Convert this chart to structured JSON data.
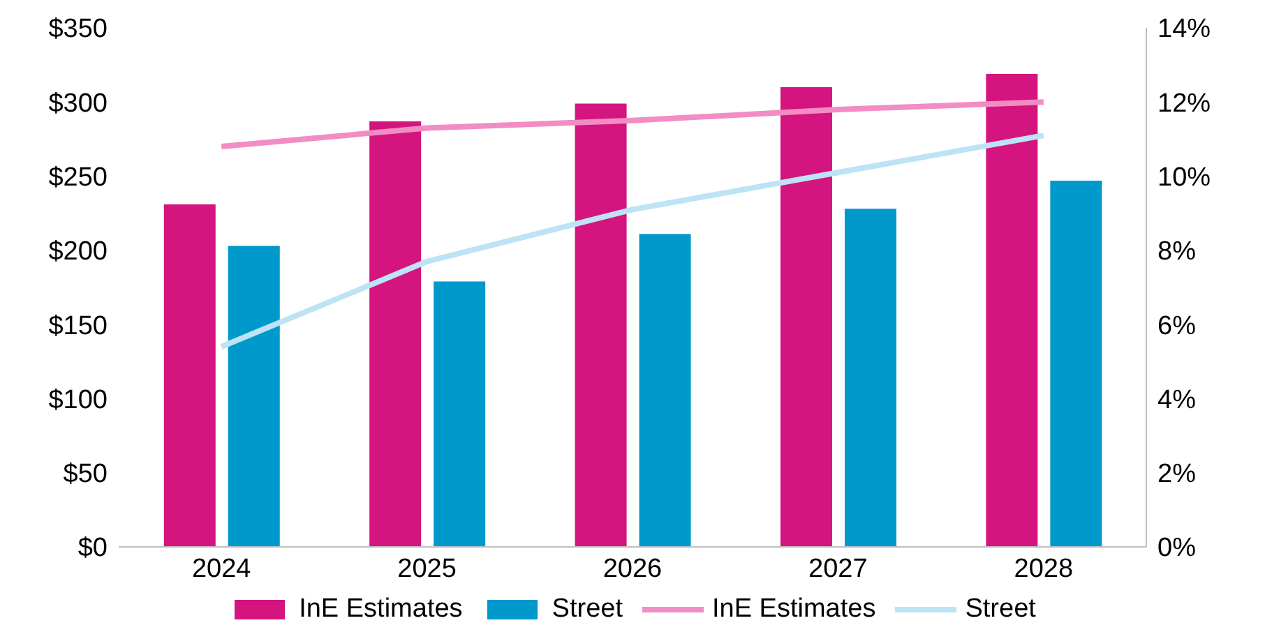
{
  "chart_data": {
    "type": "bar",
    "categories": [
      "2024",
      "2025",
      "2026",
      "2027",
      "2028"
    ],
    "series": [
      {
        "name": "InE Estimates",
        "color": "#d4147f",
        "values": [
          231,
          287,
          299,
          310,
          319
        ]
      },
      {
        "name": "Street",
        "color": "#0099cc",
        "values": [
          203,
          179,
          211,
          228,
          247
        ]
      },
      {
        "name": "InE Estimates",
        "type": "line",
        "axis": "y2",
        "color": "#f28dc4",
        "values": [
          10.8,
          11.3,
          11.5,
          11.8,
          12.0
        ]
      },
      {
        "name": "Street",
        "type": "line",
        "axis": "y2",
        "color": "#bde3f5",
        "values": [
          5.4,
          7.7,
          9.1,
          10.1,
          11.1
        ]
      }
    ],
    "ylim": [
      0,
      350
    ],
    "yticks": [
      {
        "value": 0,
        "label": "$0"
      },
      {
        "value": 50,
        "label": "$50"
      },
      {
        "value": 100,
        "label": "$100"
      },
      {
        "value": 150,
        "label": "$150"
      },
      {
        "value": 200,
        "label": "$200"
      },
      {
        "value": 250,
        "label": "$250"
      },
      {
        "value": 300,
        "label": "$300"
      },
      {
        "value": 350,
        "label": "$350"
      }
    ],
    "y2lim": [
      0,
      14
    ],
    "y2ticks": [
      {
        "value": 0,
        "label": "0%"
      },
      {
        "value": 2,
        "label": "2%"
      },
      {
        "value": 4,
        "label": "4%"
      },
      {
        "value": 6,
        "label": "6%"
      },
      {
        "value": 8,
        "label": "8%"
      },
      {
        "value": 10,
        "label": "10%"
      },
      {
        "value": 12,
        "label": "12%"
      },
      {
        "value": 14,
        "label": "14%"
      }
    ],
    "grid": false,
    "legend": "bottom",
    "marker": "none",
    "line_style": "solid"
  }
}
